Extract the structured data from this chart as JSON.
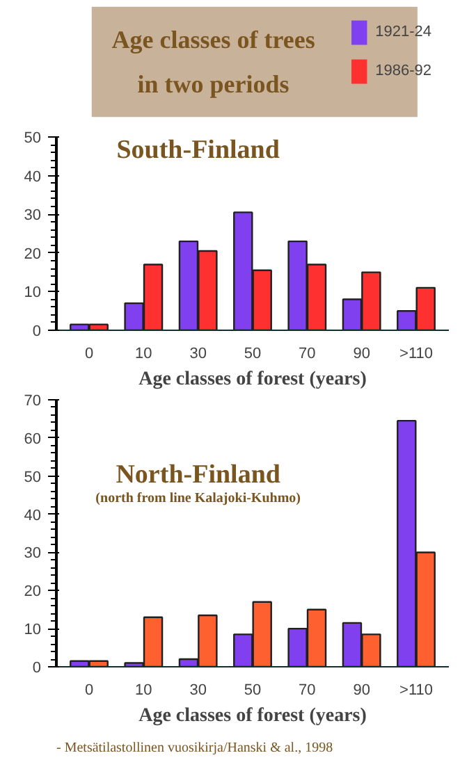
{
  "chart_data": [
    {
      "type": "bar",
      "title": "Age classes of trees in two periods",
      "subtitle": "South-Finland",
      "xlabel": "Age classes of forest (years)",
      "categories": [
        "0",
        "10",
        "30",
        "50",
        "70",
        "90",
        ">110"
      ],
      "series": [
        {
          "name": "1921-24",
          "color": "#8040f0",
          "values": [
            1.5,
            7,
            23,
            30.5,
            23,
            8,
            5
          ]
        },
        {
          "name": "1986-92",
          "color": "#ff3030",
          "values": [
            1.5,
            17,
            20.5,
            15.5,
            17,
            15,
            11
          ]
        }
      ],
      "ylim": [
        0,
        50
      ],
      "yticks": [
        0,
        10,
        20,
        30,
        40,
        50
      ],
      "grid": false,
      "legend": "top right"
    },
    {
      "type": "bar",
      "subtitle": "North-Finland",
      "xlabel": "Age classes of forest (years)",
      "categories": [
        "0",
        "10",
        "30",
        "50",
        "70",
        "90",
        ">110"
      ],
      "series": [
        {
          "color": "#8040f0",
          "values": [
            1.5,
            1,
            2,
            8.5,
            10,
            11.5,
            64.5
          ]
        },
        {
          "color": "#ff6030",
          "values": [
            1.5,
            13,
            13.5,
            17,
            15,
            8.5,
            30
          ]
        }
      ],
      "ylim": [
        0,
        70
      ],
      "yticks": [
        0,
        10,
        20,
        30,
        40,
        50,
        60,
        70
      ],
      "grid": false,
      "annotations": [
        "(north from line Kalajoki-Kuhmo)",
        "- Metsätilastollinen vuosikirja/Hanski & al., 1998"
      ]
    }
  ]
}
